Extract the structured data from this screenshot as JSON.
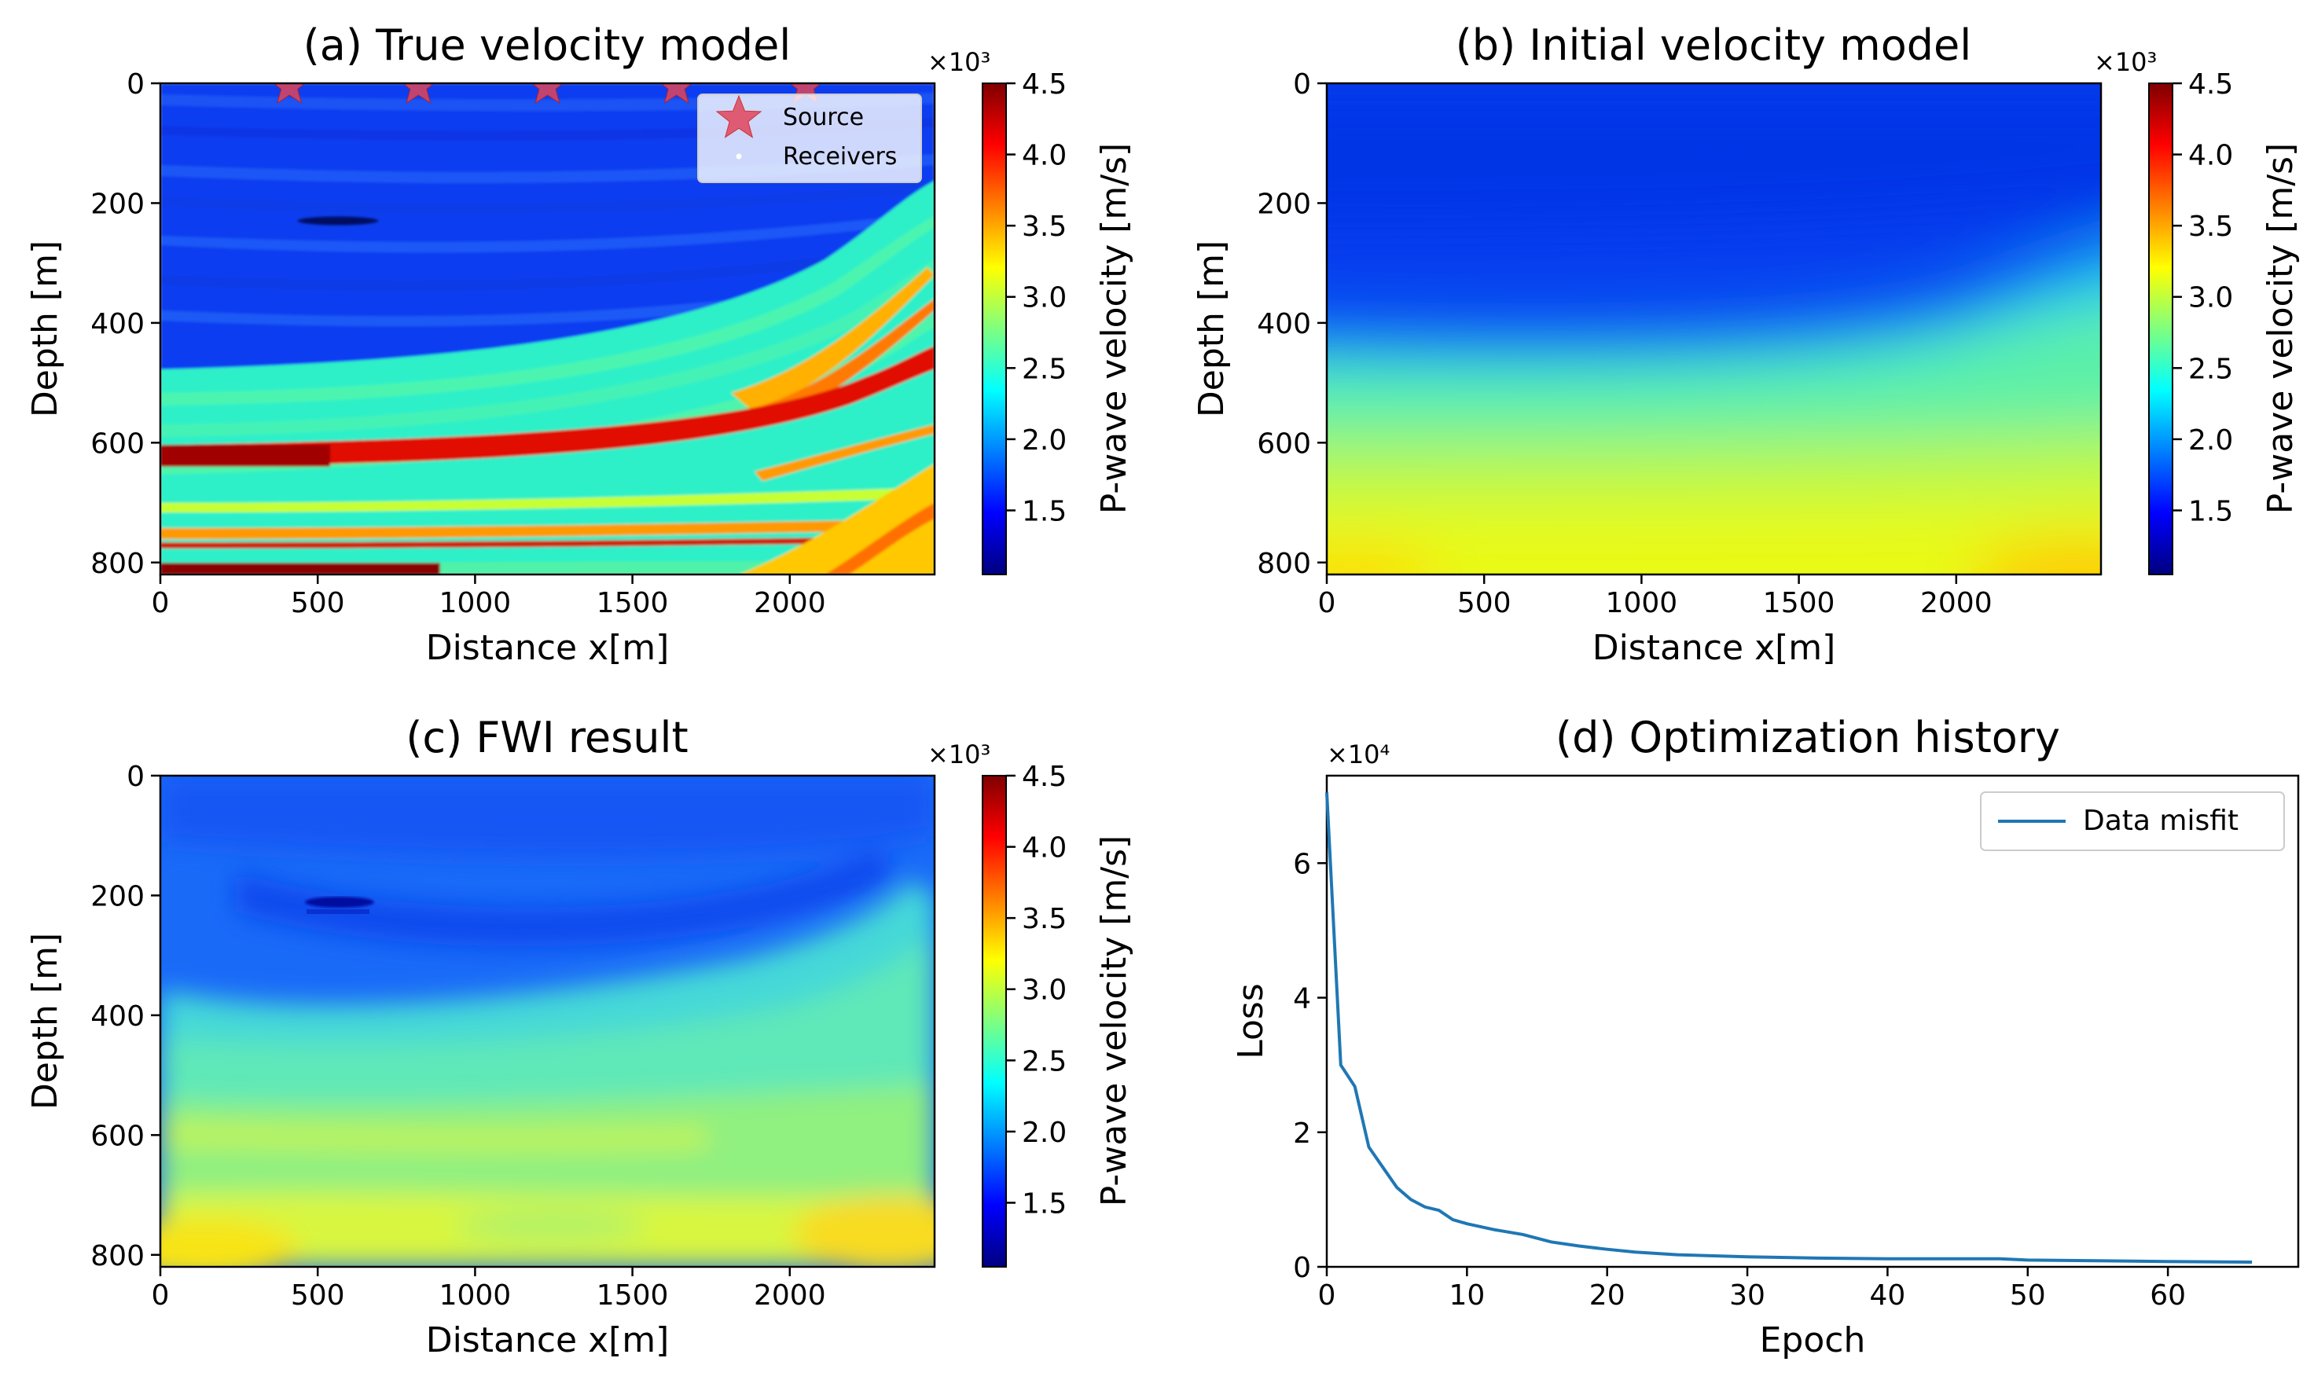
{
  "figure": {
    "colorbar_label": "P-wave velocity [m/s]",
    "colorbar_multiplier": "×10³",
    "colorbar_ticks": [
      "1.5",
      "2.0",
      "2.5",
      "3.0",
      "3.5",
      "4.0",
      "4.5"
    ],
    "colormap": "jet",
    "colormap_stops": [
      "#00007f",
      "#0000ff",
      "#007fff",
      "#00ffff",
      "#7fff7f",
      "#ffff00",
      "#ff7f00",
      "#ff0000",
      "#7f0000"
    ]
  },
  "chart_data": [
    {
      "type": "heatmap",
      "title": "(a) True velocity model",
      "xlabel": "Distance x[m]",
      "ylabel": "Depth [m]",
      "xlim": [
        0,
        2460
      ],
      "ylim": [
        820,
        0
      ],
      "xticks": [
        "0",
        "500",
        "1000",
        "1500",
        "2000"
      ],
      "yticks": [
        "0",
        "200",
        "400",
        "600",
        "800"
      ],
      "clim": [
        1050,
        4500
      ],
      "legend": {
        "location": "top-right",
        "entries": [
          {
            "label": "Source",
            "marker": "star",
            "color": "#e0455a"
          },
          {
            "label": "Receivers",
            "marker": "dot",
            "color": "#ffffff"
          }
        ]
      },
      "sources_x": [
        410,
        820,
        1230,
        1640,
        2050
      ]
    },
    {
      "type": "heatmap",
      "title": "(b) Initial velocity model",
      "xlabel": "Distance x[m]",
      "ylabel": "Depth [m]",
      "xlim": [
        0,
        2460
      ],
      "ylim": [
        820,
        0
      ],
      "xticks": [
        "0",
        "500",
        "1000",
        "1500",
        "2000"
      ],
      "yticks": [
        "0",
        "200",
        "400",
        "600",
        "800"
      ],
      "clim": [
        1050,
        4500
      ]
    },
    {
      "type": "heatmap",
      "title": "(c) FWI result",
      "xlabel": "Distance x[m]",
      "ylabel": "Depth [m]",
      "xlim": [
        0,
        2460
      ],
      "ylim": [
        820,
        0
      ],
      "xticks": [
        "0",
        "500",
        "1000",
        "1500",
        "2000"
      ],
      "yticks": [
        "0",
        "200",
        "400",
        "600",
        "800"
      ],
      "clim": [
        1050,
        4500
      ]
    },
    {
      "type": "line",
      "title": "(d) Optimization history",
      "xlabel": "Epoch",
      "ylabel": "Loss",
      "y_multiplier": "×10⁴",
      "xlim": [
        0,
        69.3
      ],
      "ylim": [
        0,
        7.3
      ],
      "xticks": [
        0,
        10,
        20,
        30,
        40,
        50,
        60
      ],
      "yticks": [
        0,
        2,
        4,
        6
      ],
      "legend": {
        "location": "top-right"
      },
      "series": [
        {
          "name": "Data misfit",
          "color": "#1f77b4",
          "x": [
            0,
            1,
            2,
            3,
            4,
            5,
            6,
            7,
            8,
            9,
            10,
            12,
            14,
            16,
            18,
            20,
            22,
            25,
            30,
            35,
            40,
            45,
            48,
            50,
            55,
            60,
            66
          ],
          "y": [
            7.05,
            3.0,
            2.68,
            1.78,
            1.48,
            1.18,
            1.0,
            0.89,
            0.84,
            0.7,
            0.64,
            0.55,
            0.48,
            0.37,
            0.31,
            0.26,
            0.22,
            0.18,
            0.15,
            0.13,
            0.12,
            0.12,
            0.12,
            0.1,
            0.09,
            0.08,
            0.07
          ]
        }
      ]
    }
  ]
}
